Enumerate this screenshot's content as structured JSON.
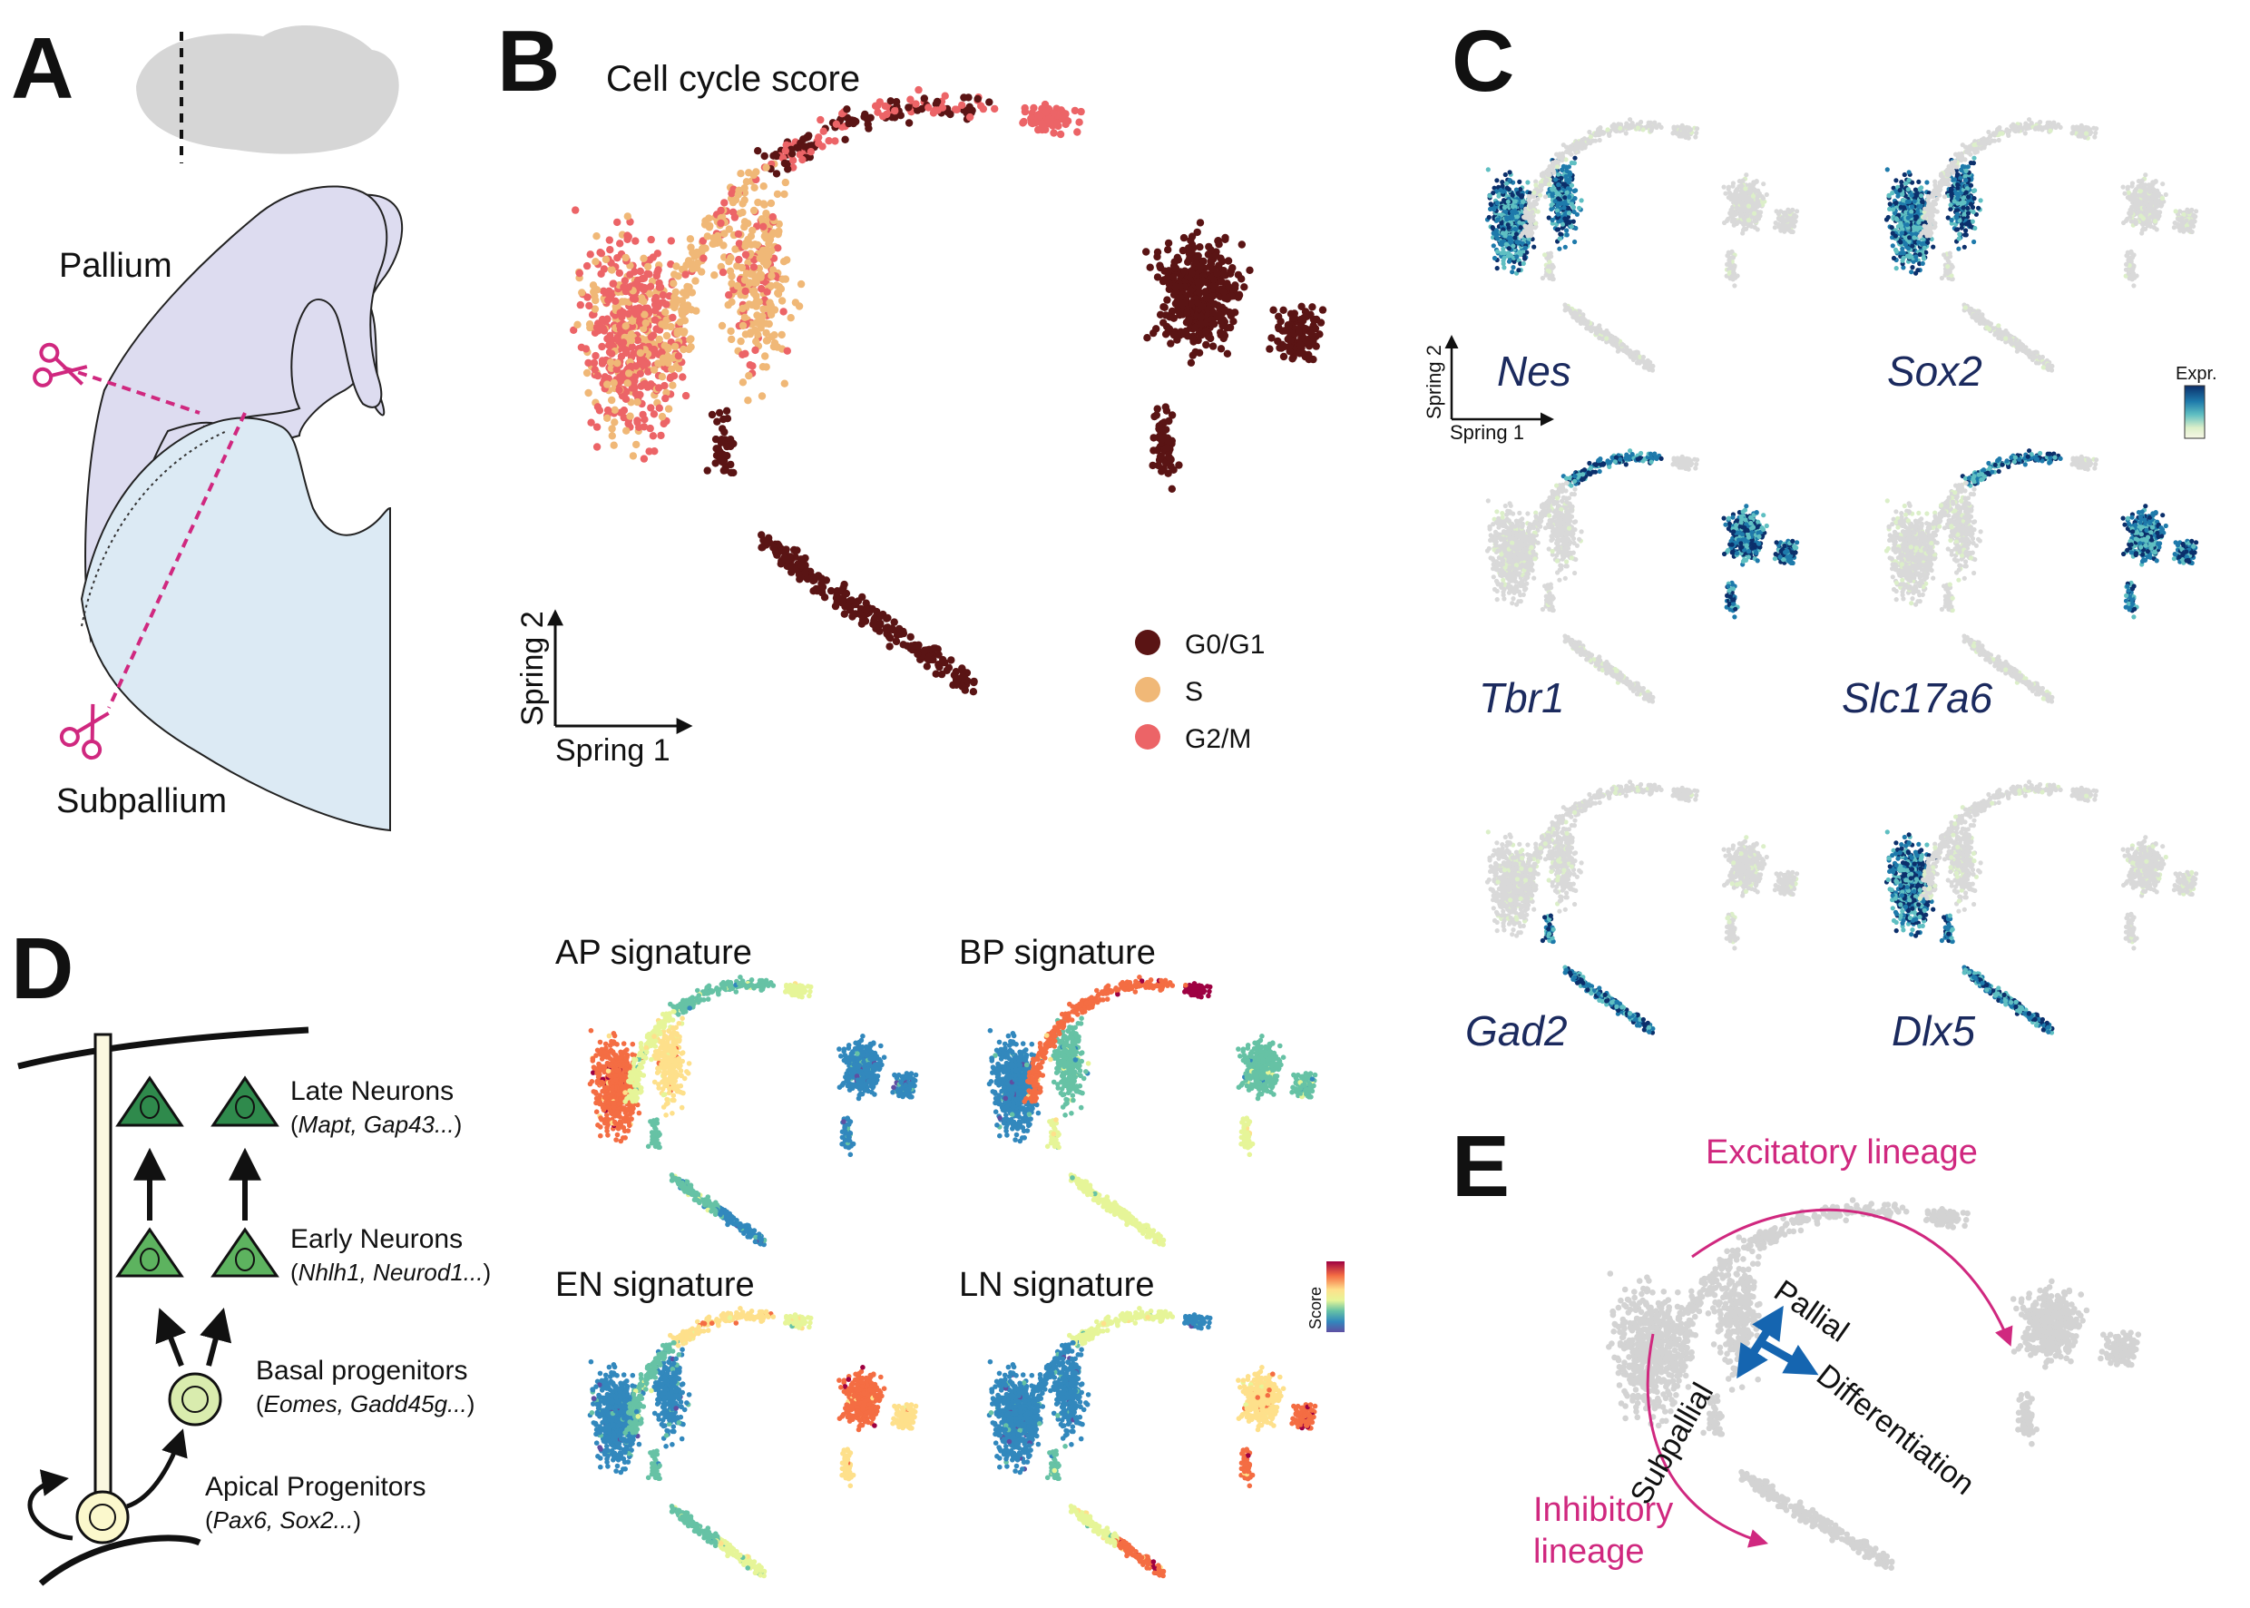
{
  "panels": {
    "A": {
      "label": "A",
      "pallium": "Pallium",
      "subpallium": "Subpallium",
      "colors": {
        "pallium": "#dddcf0",
        "subpallium": "#dceaf4",
        "cut": "#d0287f",
        "brain": "#d6d6d6"
      }
    },
    "B": {
      "label": "B",
      "title": "Cell cycle score",
      "axis_x": "Spring 1",
      "axis_y": "Spring 2",
      "legend": [
        {
          "name": "G0/G1",
          "color": "#5a1414"
        },
        {
          "name": "S",
          "color": "#f0b877"
        },
        {
          "name": "G2/M",
          "color": "#ec6467"
        }
      ]
    },
    "C": {
      "label": "C",
      "axis_x": "Spring 1",
      "axis_y": "Spring 2",
      "colorbar_label": "Expr.",
      "colorbar_colors": [
        "#0b2f6b",
        "#1e7aab",
        "#5fbfc2",
        "#dcefc9",
        "#f7f7e6"
      ],
      "genes": [
        "Nes",
        "Sox2",
        "Tbr1",
        "Slc17a6",
        "Gad2",
        "Dlx5"
      ]
    },
    "D": {
      "label": "D",
      "late_neurons": "Late Neurons",
      "late_markers": "Mapt, Gap43...",
      "early_neurons": "Early Neurons",
      "early_markers": "Nhlh1, Neurod1...",
      "basal": "Basal progenitors",
      "basal_markers": "Eomes, Gadd45g...",
      "apical": "Apical Progenitors",
      "apical_markers": "Pax6, Sox2...",
      "paren_open": "(",
      "paren_close": ")",
      "signatures": [
        "AP signature",
        "BP signature",
        "EN signature",
        "LN signature"
      ],
      "score_label": "Score",
      "score_colors": [
        "#9e0142",
        "#f46d43",
        "#fee08b",
        "#e6f598",
        "#66c2a5",
        "#3288bd",
        "#5e4fa2"
      ]
    },
    "E": {
      "label": "E",
      "excitatory": "Excitatory lineage",
      "inhibitory_1": "Inhibitory",
      "inhibitory_2": "lineage",
      "pallial": "Pallial",
      "subpallial": "Subpallial",
      "differentiation": "Differentiation",
      "colors": {
        "lineage": "#d0287f",
        "axes": "#1565b0"
      }
    }
  }
}
